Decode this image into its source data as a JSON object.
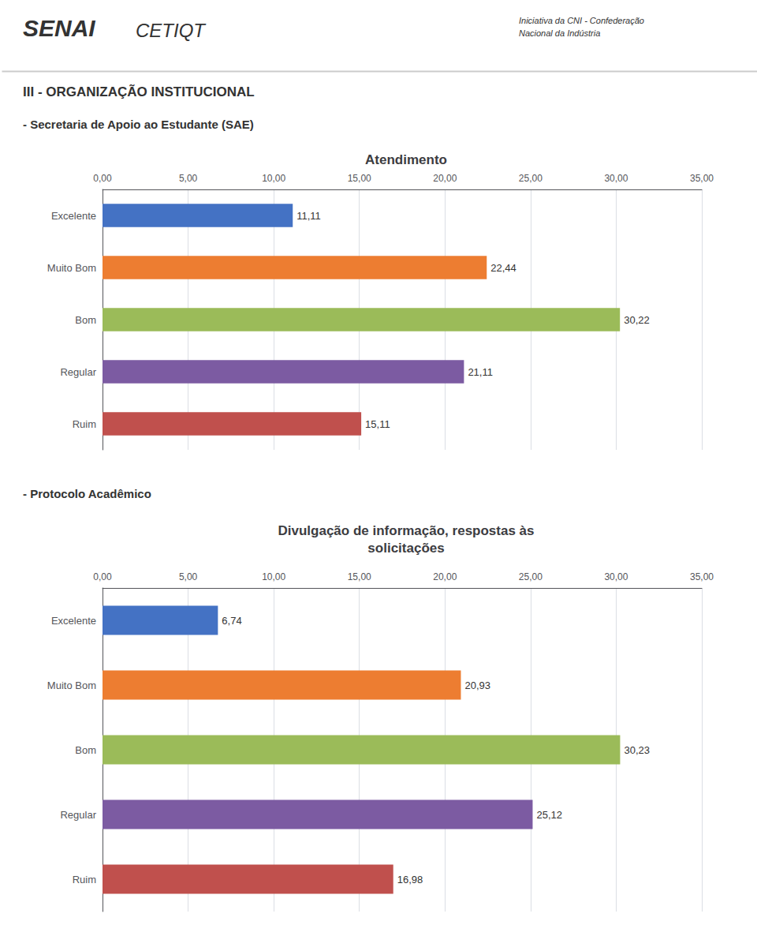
{
  "chart_data": [
    {
      "type": "bar",
      "orientation": "horizontal",
      "annotations": [
        "SENAI",
        "CETIQT",
        "Iniciativa da CNI - Confederação",
        "Nacional da Indústria",
        "III - ORGANIZAÇÃO INSTITUCIONAL"
      ],
      "subtitle": "- Secretaria de Apoio ao Estudante (SAE)",
      "title": "Atendimento",
      "categories": [
        "Excelente",
        "Muito Bom",
        "Bom",
        "Regular",
        "Ruim"
      ],
      "values": [
        11.11,
        22.44,
        30.22,
        21.11,
        15.11
      ],
      "value_labels": [
        "11,11",
        "22,44",
        "30,22",
        "21,11",
        "15,11"
      ],
      "colors": [
        "#4472C4",
        "#ED7D31",
        "#9BBB59",
        "#7C5BA2",
        "#C0504D"
      ],
      "xlim": [
        0,
        35
      ],
      "xticks": [
        {
          "value": 0,
          "label": "0,00"
        },
        {
          "value": 5,
          "label": "5,00"
        },
        {
          "value": 10,
          "label": "10,00"
        },
        {
          "value": 15,
          "label": "15,00"
        },
        {
          "value": 20,
          "label": "20,00"
        },
        {
          "value": 25,
          "label": "25,00"
        },
        {
          "value": 30,
          "label": "30,00"
        },
        {
          "value": 35,
          "label": "35,00"
        }
      ],
      "grid": true,
      "data_labels": true
    },
    {
      "type": "bar",
      "orientation": "horizontal",
      "subtitle": "- Protocolo Acadêmico",
      "title": "Divulgação de informação, respostas às\nsolicitações",
      "categories": [
        "Excelente",
        "Muito Bom",
        "Bom",
        "Regular",
        "Ruim"
      ],
      "values": [
        6.74,
        20.93,
        30.23,
        25.12,
        16.98
      ],
      "value_labels": [
        "6,74",
        "20,93",
        "30,23",
        "25,12",
        "16,98"
      ],
      "colors": [
        "#4472C4",
        "#ED7D31",
        "#9BBB59",
        "#7C5BA2",
        "#C0504D"
      ],
      "xlim": [
        0,
        35
      ],
      "xticks": [
        {
          "value": 0,
          "label": "0,00"
        },
        {
          "value": 5,
          "label": "5,00"
        },
        {
          "value": 10,
          "label": "10,00"
        },
        {
          "value": 15,
          "label": "15,00"
        },
        {
          "value": 20,
          "label": "20,00"
        },
        {
          "value": 25,
          "label": "25,00"
        },
        {
          "value": 30,
          "label": "30,00"
        },
        {
          "value": 35,
          "label": "35,00"
        }
      ],
      "grid": true,
      "data_labels": true
    }
  ]
}
